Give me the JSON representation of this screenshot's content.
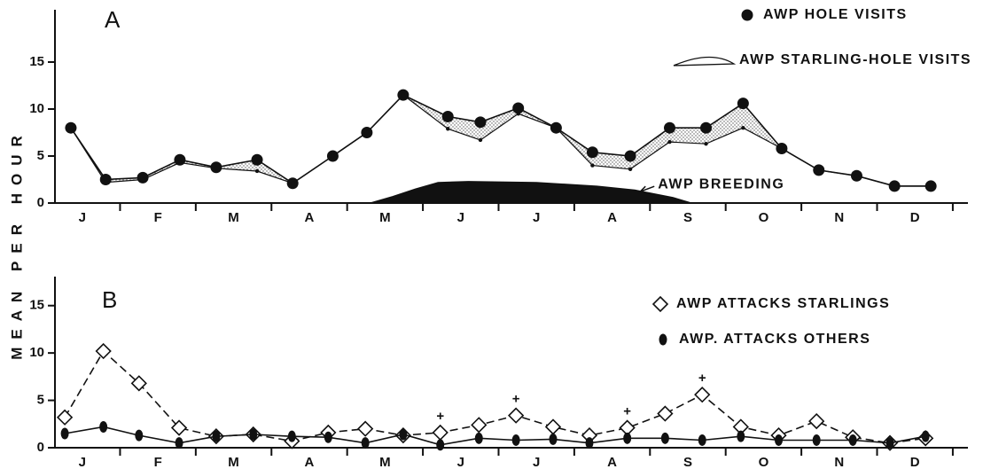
{
  "figure": {
    "ylabel": "MEAN PER HOUR"
  },
  "chart_data": [
    {
      "type": "line",
      "panel": "A",
      "categories": [
        "J",
        "F",
        "M",
        "A",
        "M",
        "J",
        "J",
        "A",
        "S",
        "O",
        "N",
        "D"
      ],
      "xlim": [
        0.14,
        12.2
      ],
      "xticks": [
        1,
        2,
        3,
        4,
        5,
        6,
        7,
        8,
        9,
        10,
        11,
        12
      ],
      "ylim": [
        0,
        20
      ],
      "yticks": [
        0,
        5,
        10,
        15
      ],
      "series": [
        {
          "name": "AWP HOLE VISITS",
          "color": "#111111",
          "marker": "dot",
          "line": "solid",
          "x": [
            0.35,
            0.81,
            1.3,
            1.79,
            2.27,
            2.81,
            3.28,
            3.81,
            4.26,
            4.74,
            5.33,
            5.76,
            6.26,
            6.76,
            7.24,
            7.74,
            8.26,
            8.74,
            9.23,
            9.74,
            10.23,
            10.73,
            11.23,
            11.71
          ],
          "values": [
            8,
            2.5,
            2.7,
            4.6,
            3.8,
            4.6,
            2.1,
            5,
            7.5,
            11.5,
            9.2,
            8.6,
            10.1,
            8,
            5.4,
            5,
            8,
            8,
            10.6,
            5.8,
            3.5,
            2.9,
            1.8,
            1.8
          ]
        },
        {
          "name": "AWP STARLING-HOLE VISITS",
          "color": "#111111",
          "marker": "small",
          "line": "solid",
          "fill": "band",
          "x": [
            0.35,
            0.81,
            1.3,
            1.79,
            2.27,
            2.81,
            3.28,
            3.81,
            4.26,
            4.74,
            5.33,
            5.76,
            6.26,
            6.76,
            7.24,
            7.74,
            8.26,
            8.74,
            9.23,
            9.74,
            10.23,
            10.73,
            11.23,
            11.71
          ],
          "values": [
            8,
            2.2,
            2.5,
            4.3,
            3.7,
            3.4,
            2.1,
            5,
            7.5,
            11.5,
            7.9,
            6.7,
            9.5,
            8,
            4,
            3.6,
            6.5,
            6.3,
            8,
            5.8,
            3.5,
            2.9,
            1.8,
            1.8
          ]
        },
        {
          "name": "AWP BREEDING",
          "color": "#111111",
          "marker": "none",
          "fill": "area",
          "legend": false,
          "x": [
            4.3,
            4.6,
            4.9,
            5.2,
            5.6,
            6.5,
            7.3,
            7.8,
            8.3,
            8.55
          ],
          "values": [
            0,
            0.7,
            1.5,
            2.2,
            2.3,
            2.2,
            1.8,
            1.4,
            0.6,
            0
          ]
        }
      ]
    },
    {
      "type": "line",
      "panel": "B",
      "categories": [
        "J",
        "F",
        "M",
        "A",
        "M",
        "J",
        "J",
        "A",
        "S",
        "O",
        "N",
        "D"
      ],
      "xlim": [
        0.14,
        12.2
      ],
      "xticks": [
        1,
        2,
        3,
        4,
        5,
        6,
        7,
        8,
        9,
        10,
        11,
        12
      ],
      "ylim": [
        0,
        17.5
      ],
      "yticks": [
        0,
        5,
        10,
        15
      ],
      "series": [
        {
          "name": "AWP ATTACKS STARLINGS",
          "color": "#111111",
          "marker": "diamond",
          "line": "dashed",
          "x": [
            0.27,
            0.78,
            1.25,
            1.78,
            2.27,
            2.76,
            3.27,
            3.75,
            4.24,
            4.74,
            5.23,
            5.74,
            6.23,
            6.72,
            7.2,
            7.7,
            8.2,
            8.69,
            9.2,
            9.7,
            10.2,
            10.68,
            11.17,
            11.64
          ],
          "values": [
            3.2,
            10.2,
            6.8,
            2.1,
            1.2,
            1.4,
            0.7,
            1.6,
            2,
            1.3,
            1.6,
            2.4,
            3.4,
            2.2,
            1.3,
            2.1,
            3.6,
            5.6,
            2.2,
            1.3,
            2.8,
            1.1,
            0.5,
            1
          ]
        },
        {
          "name": "AWP. ATTACKS OTHERS",
          "color": "#111111",
          "marker": "ellipse",
          "line": "solid",
          "x": [
            0.27,
            0.78,
            1.25,
            1.78,
            2.27,
            2.76,
            3.27,
            3.75,
            4.24,
            4.74,
            5.23,
            5.74,
            6.23,
            6.72,
            7.2,
            7.7,
            8.2,
            8.69,
            9.2,
            9.7,
            10.2,
            10.68,
            11.17,
            11.64
          ],
          "values": [
            1.5,
            2.2,
            1.3,
            0.5,
            1.2,
            1.4,
            1.2,
            1.1,
            0.5,
            1.4,
            0.3,
            1,
            0.8,
            0.9,
            0.5,
            1,
            1,
            0.8,
            1.2,
            0.8,
            0.8,
            0.8,
            0.5,
            1.2
          ]
        }
      ],
      "significance": {
        "symbol": "+",
        "series": 0,
        "indices": [
          10,
          12,
          15,
          17
        ]
      }
    }
  ]
}
